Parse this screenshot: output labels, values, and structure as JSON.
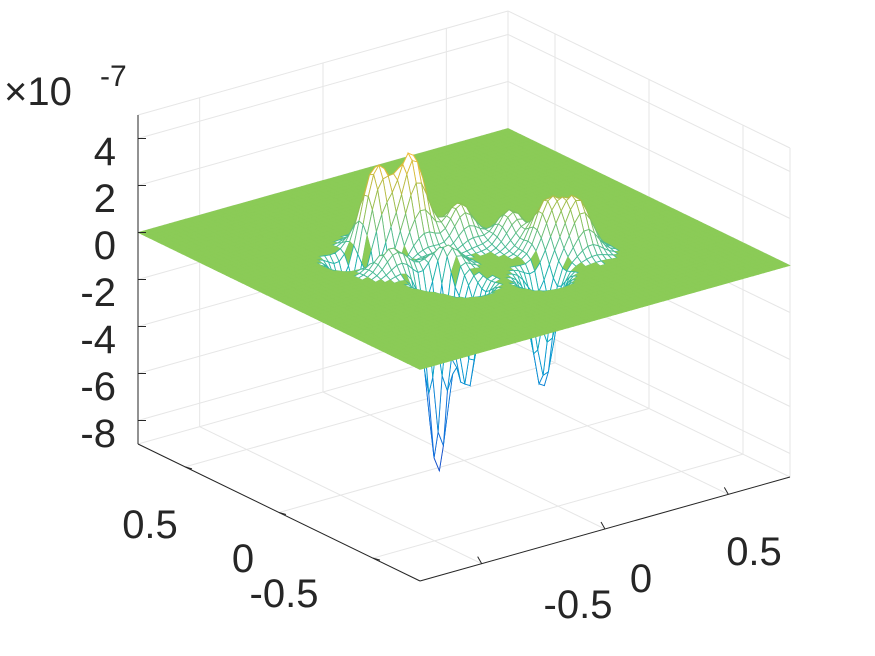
{
  "chart_data": {
    "type": "surface",
    "title": "",
    "xlabel": "",
    "ylabel": "",
    "zlabel": "",
    "z_multiplier": {
      "base_text": "×10",
      "exponent": "-7"
    },
    "xlim": [
      -0.75,
      0.75
    ],
    "ylim": [
      -0.75,
      0.75
    ],
    "zlim": [
      -9,
      5
    ],
    "x_ticks": [
      {
        "value": -0.5,
        "label": "-0.5"
      },
      {
        "value": 0,
        "label": "0"
      },
      {
        "value": 0.5,
        "label": "0.5"
      }
    ],
    "y_ticks": [
      {
        "value": -0.5,
        "label": "-0.5"
      },
      {
        "value": 0,
        "label": "0"
      },
      {
        "value": 0.5,
        "label": "0.5"
      }
    ],
    "z_ticks": [
      {
        "value": 4,
        "label": "4"
      },
      {
        "value": 2,
        "label": "2"
      },
      {
        "value": 0,
        "label": "0"
      },
      {
        "value": -2,
        "label": "-2"
      },
      {
        "value": -4,
        "label": "-4"
      },
      {
        "value": -6,
        "label": "-6"
      },
      {
        "value": -8,
        "label": "-8"
      }
    ],
    "grid": true,
    "colormap": "parula",
    "features": [
      {
        "kind": "peak",
        "x": -0.22,
        "y": 0.18,
        "amplitude": 3.4
      },
      {
        "kind": "peak",
        "x": -0.12,
        "y": 0.12,
        "amplitude": 3.8
      },
      {
        "kind": "peak",
        "x": -0.05,
        "y": 0.22,
        "amplitude": 2.4
      },
      {
        "kind": "peak",
        "x": 0.02,
        "y": 0.05,
        "amplitude": 1.7
      },
      {
        "kind": "peak",
        "x": -0.3,
        "y": 0.0,
        "amplitude": 1.6
      },
      {
        "kind": "peak",
        "x": 0.2,
        "y": -0.18,
        "amplitude": 2.1
      },
      {
        "kind": "peak",
        "x": 0.27,
        "y": -0.25,
        "amplitude": 2.2
      },
      {
        "kind": "peak",
        "x": 0.15,
        "y": -0.05,
        "amplitude": 1.4
      },
      {
        "kind": "peak",
        "x": -0.15,
        "y": -0.1,
        "amplitude": 1.1
      },
      {
        "kind": "dip",
        "x": -0.22,
        "y": -0.15,
        "amplitude": -8.5
      },
      {
        "kind": "dip",
        "x": -0.18,
        "y": -0.25,
        "amplitude": -4.5
      },
      {
        "kind": "dip",
        "x": -0.28,
        "y": 0.05,
        "amplitude": -4.0
      },
      {
        "kind": "dip",
        "x": 0.05,
        "y": -0.35,
        "amplitude": -4.4
      },
      {
        "kind": "dip",
        "x": 0.1,
        "y": -0.3,
        "amplitude": -2.5
      },
      {
        "kind": "dip",
        "x": -0.35,
        "y": 0.15,
        "amplitude": -2.3
      }
    ]
  }
}
